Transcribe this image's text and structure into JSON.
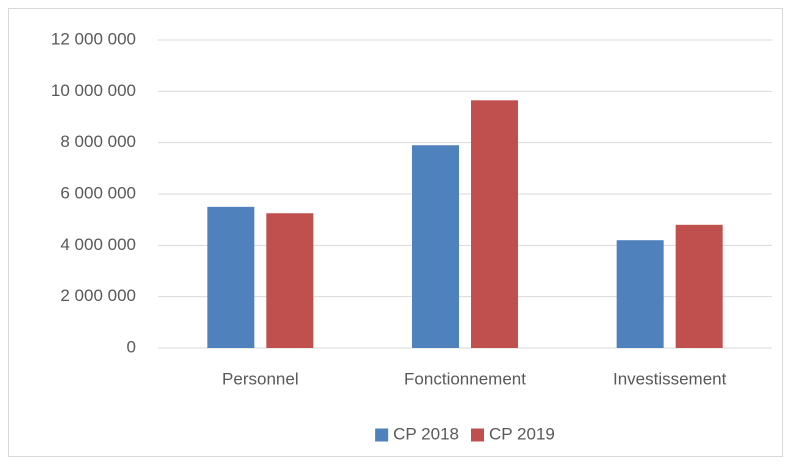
{
  "chart_data": {
    "type": "bar",
    "categories": [
      "Personnel",
      "Fonctionnement",
      "Investissement"
    ],
    "series": [
      {
        "name": "CP 2018",
        "color": "#4f81bd",
        "values": [
          5500000,
          7900000,
          4200000
        ]
      },
      {
        "name": "CP 2019",
        "color": "#c0504d",
        "values": [
          5250000,
          9650000,
          4800000
        ]
      }
    ],
    "ylim": [
      0,
      12000000
    ],
    "yticks": [
      0,
      {
        "value": 2000000,
        "label": "2 000 000"
      },
      {
        "value": 4000000,
        "label": "4 000 000"
      },
      {
        "value": 6000000,
        "label": "6 000 000"
      },
      {
        "value": 8000000,
        "label": "8 000 000"
      },
      {
        "value": 10000000,
        "label": "10 000 000"
      },
      {
        "value": 12000000,
        "label": "12 000 000"
      }
    ],
    "grid": true,
    "legend": "bottom"
  }
}
